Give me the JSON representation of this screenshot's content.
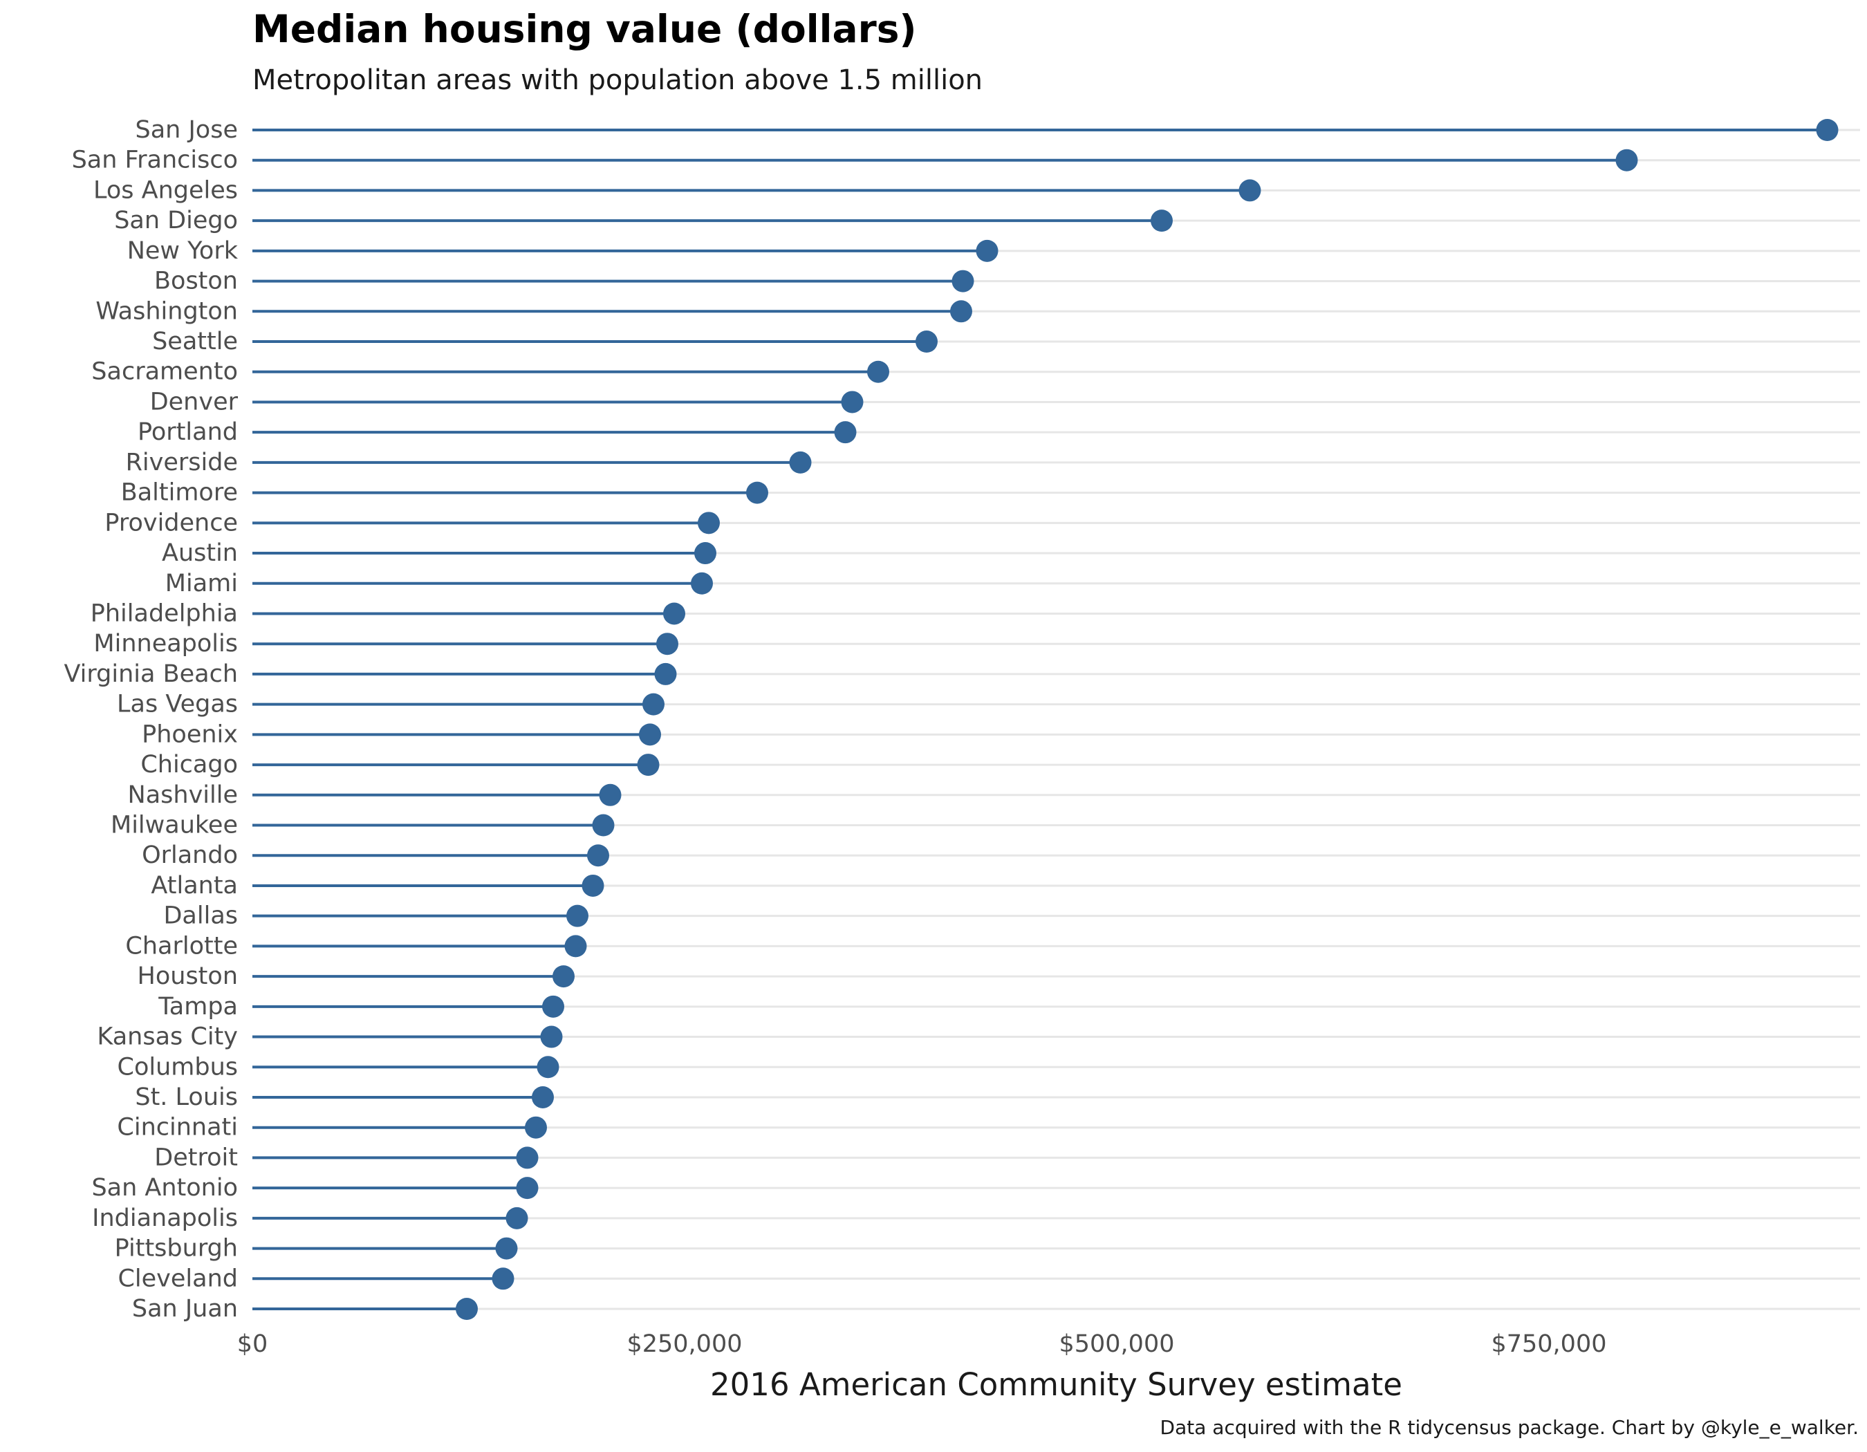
{
  "chart_data": {
    "type": "lollipop",
    "title": "Median housing value (dollars)",
    "subtitle": "Metropolitan areas with population above 1.5 million",
    "xlabel": "2016 American Community Survey estimate",
    "ylabel": "",
    "caption": "Data acquired with the R tidycensus package. Chart by @kyle_e_walker.",
    "xlim": [
      0,
      930000
    ],
    "x_ticks": [
      0,
      250000,
      500000,
      750000
    ],
    "x_tick_labels": [
      "$0",
      "$250,000",
      "$500,000",
      "$750,000"
    ],
    "grid": "horizontal major gridlines per category",
    "color": "#336699",
    "categories": [
      "San Jose",
      "San Francisco",
      "Los Angeles",
      "San Diego",
      "New York",
      "Boston",
      "Washington",
      "Seattle",
      "Sacramento",
      "Denver",
      "Portland",
      "Riverside",
      "Baltimore",
      "Providence",
      "Austin",
      "Miami",
      "Philadelphia",
      "Minneapolis",
      "Virginia Beach",
      "Las Vegas",
      "Phoenix",
      "Chicago",
      "Nashville",
      "Milwaukee",
      "Orlando",
      "Atlanta",
      "Dallas",
      "Charlotte",
      "Houston",
      "Tampa",
      "Kansas City",
      "Columbus",
      "St. Louis",
      "Cincinnati",
      "Detroit",
      "San Antonio",
      "Indianapolis",
      "Pittsburgh",
      "Cleveland",
      "San Juan"
    ],
    "values": [
      911000,
      795000,
      577000,
      526000,
      425000,
      411000,
      410000,
      390000,
      362000,
      347000,
      343000,
      317000,
      292000,
      264000,
      262000,
      260000,
      244000,
      240000,
      239000,
      232000,
      230000,
      229000,
      207000,
      203000,
      200000,
      197000,
      188000,
      187000,
      180000,
      174000,
      173000,
      171000,
      168000,
      164000,
      159000,
      159000,
      153000,
      147000,
      145000,
      124000
    ]
  }
}
